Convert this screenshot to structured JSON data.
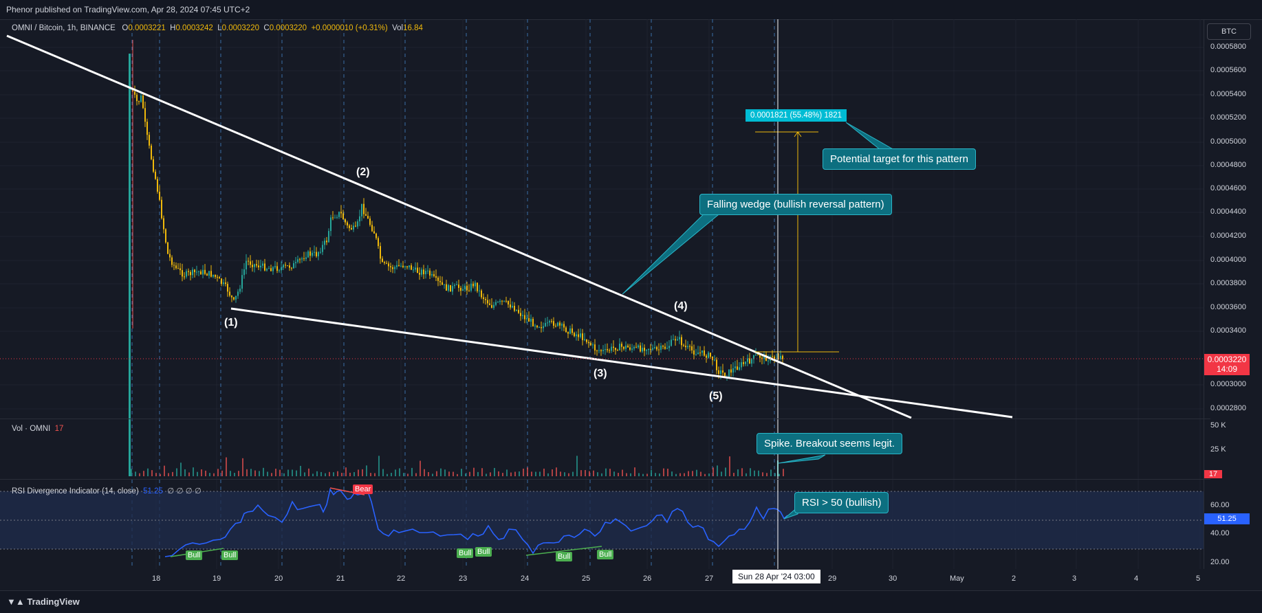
{
  "header": {
    "published": "Phenor published on TradingView.com, Apr 28, 2024 07:45 UTC+2"
  },
  "legend": {
    "symbol": "OMNI / Bitcoin, 1h, BINANCE",
    "open_label": "O",
    "open": "0.0003221",
    "high_label": "H",
    "high": "0.0003242",
    "low_label": "L",
    "low": "0.0003220",
    "close_label": "C",
    "close": "0.0003220",
    "change": "+0.0000010 (+0.31%)",
    "vol_label": "Vol",
    "vol": "16.84"
  },
  "volume": {
    "label": "Vol · OMNI",
    "value": "17",
    "axis": [
      "50 K",
      "25 K"
    ],
    "current": "17"
  },
  "rsi": {
    "label": "RSI Divergence Indicator (14, close)",
    "value": "51.25",
    "extra": "∅ ∅ ∅ ∅",
    "axis": [
      "60.00",
      "40.00",
      "20.00"
    ],
    "current": "51.25"
  },
  "price_axis": {
    "unit_button": "BTC",
    "ticks": [
      "0.0005800",
      "0.0005600",
      "0.0005400",
      "0.0005200",
      "0.0005000",
      "0.0004800",
      "0.0004600",
      "0.0004400",
      "0.0004200",
      "0.0004000",
      "0.0003800",
      "0.0003600",
      "0.0003400",
      "0.0003000",
      "0.0002800"
    ],
    "current_price": "0.0003220",
    "countdown": "14:09"
  },
  "time_axis": {
    "ticks": [
      "18",
      "19",
      "20",
      "21",
      "22",
      "23",
      "24",
      "25",
      "26",
      "27",
      "29",
      "30",
      "May",
      "2",
      "3",
      "4",
      "5"
    ],
    "crosshair": "Sun 28 Apr '24   03:00"
  },
  "annotations": {
    "wave_labels": [
      "(1)",
      "(2)",
      "(3)",
      "(4)",
      "(5)"
    ],
    "falling_wedge": "Falling wedge (bullish reversal pattern)",
    "target": "Potential target for this pattern",
    "measure": "0.0001821 (55.48%) 1821",
    "spike": "Spike. Breakout seems legit.",
    "rsi_note": "RSI > 50 (bullish)",
    "bull": "Bull",
    "bear": "Bear"
  },
  "colors": {
    "background": "#161a25",
    "up_candle": "#26a69a",
    "down_candle": "#f0b90b",
    "trendline": "#ffffff",
    "rsi_line": "#2962ff",
    "callout": "#0d6f80",
    "price_tag": "#f23645",
    "measure_line": "#f0b90b"
  },
  "footer": {
    "brand": "TradingView"
  }
}
